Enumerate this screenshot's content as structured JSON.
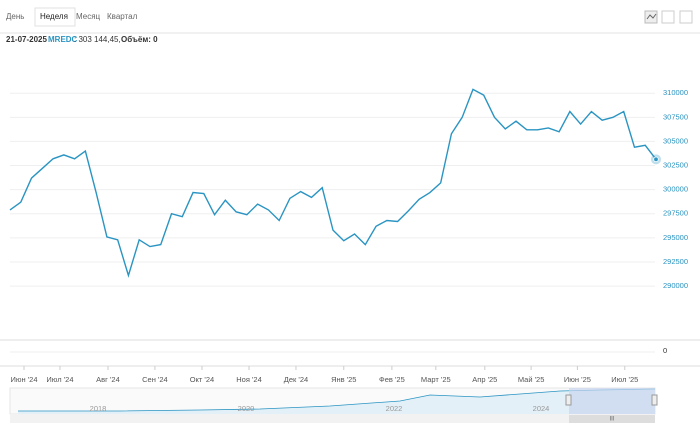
{
  "toolbar": {
    "tabs": [
      "День",
      "Неделя",
      "Месяц",
      "Квартал"
    ],
    "selected": 1
  },
  "info": {
    "date": "21-07-2025",
    "ticker": "MREDC",
    "price": ": 303 144,45,",
    "volume": "Объём: 0"
  },
  "chart_data": {
    "type": "line",
    "series": [
      {
        "name": "MREDC",
        "color": "#2a94c2",
        "values": [
          297900,
          298700,
          301200,
          302200,
          303200,
          303600,
          303200,
          304000,
          299700,
          295100,
          294800,
          291100,
          294800,
          294100,
          294300,
          297500,
          297200,
          299700,
          299600,
          297400,
          298900,
          297700,
          297400,
          298500,
          297900,
          296800,
          299100,
          299800,
          299200,
          300200,
          295800,
          294700,
          295400,
          294300,
          296200,
          296800,
          296700,
          297800,
          299000,
          299700,
          300700,
          305800,
          307500,
          310400,
          309800,
          307500,
          306300,
          307100,
          306200,
          306200,
          306400,
          306000,
          308100,
          306800,
          308100,
          307200,
          307500,
          308100,
          304400,
          304600,
          303144.45
        ]
      }
    ],
    "xlim": [
      0,
      60
    ],
    "xticks": [
      {
        "value": 1.3,
        "label": "Июн '24"
      },
      {
        "value": 4.64,
        "label": "Июл '24"
      },
      {
        "value": 9.1,
        "label": "Авг '24"
      },
      {
        "value": 13.46,
        "label": "Сен '24"
      },
      {
        "value": 17.83,
        "label": "Окт '24"
      },
      {
        "value": 22.2,
        "label": "Ноя '24"
      },
      {
        "value": 26.56,
        "label": "Дек '24"
      },
      {
        "value": 31.0,
        "label": "Янв '25"
      },
      {
        "value": 35.47,
        "label": "Фев '25"
      },
      {
        "value": 39.55,
        "label": "Март '25"
      },
      {
        "value": 44.1,
        "label": "Апр '25"
      },
      {
        "value": 48.4,
        "label": "Май '25"
      },
      {
        "value": 52.7,
        "label": "Июн '25"
      },
      {
        "value": 57.1,
        "label": "Июл '25"
      }
    ],
    "ylim": [
      287000,
      315000
    ],
    "yticks": [
      290000,
      292500,
      295000,
      297500,
      300000,
      302500,
      305000,
      307500,
      310000
    ],
    "volume_ticks": [
      0
    ],
    "navigator_years": [
      "2018",
      "2020",
      "2022",
      "2024"
    ],
    "grid": true
  }
}
